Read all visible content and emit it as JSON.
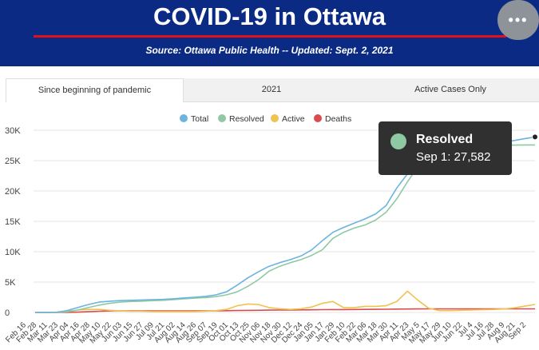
{
  "header": {
    "title": "COVID-19 in Ottawa",
    "subtitle": "Source:  Ottawa Public Health -- Updated:  Sept. 2, 2021",
    "more_icon": "ellipsis-icon",
    "more_label": "•••"
  },
  "tabs": [
    {
      "label": "Since beginning of pandemic",
      "active": true
    },
    {
      "label": "2021",
      "active": false
    },
    {
      "label": "Active Cases Only",
      "active": false
    }
  ],
  "tooltip": {
    "series": "Resolved",
    "text": "Sep 1: 27,582",
    "color": "#8fc9a3"
  },
  "chart_data": {
    "type": "line",
    "title": "",
    "xlabel": "",
    "ylabel": "",
    "ylim": [
      0,
      30000
    ],
    "yticks": [
      "0",
      "5K",
      "10K",
      "15K",
      "20K",
      "25K",
      "30K"
    ],
    "grid": true,
    "legend_position": "top-center",
    "x_ticks": [
      "Feb 16",
      "Feb 28",
      "Mar 11",
      "Mar 23",
      "Apr 04",
      "Apr 16",
      "Apr 28",
      "May 10",
      "May 22",
      "Jun 03",
      "Jun 15",
      "Jun 27",
      "Jul 09",
      "Jul 21",
      "Aug 02",
      "Aug 14",
      "Aug 26",
      "Sep 07",
      "Sep 19",
      "Oct 01",
      "Oct 13",
      "Oct 25",
      "Nov 06",
      "Nov 18",
      "Nov 30",
      "Dec 12",
      "Dec 24",
      "Jan 05",
      "Jan 17",
      "Jan 29",
      "Feb 10",
      "Feb 22",
      "Mar 06",
      "Mar 18",
      "Mar 30",
      "Apr 11",
      "Apr 23",
      "May 5",
      "May 17",
      "May 29",
      "Jun 10",
      "Jun 22",
      "Jul 4",
      "Jul 16",
      "Jul 28",
      "Aug 9",
      "Aug 21",
      "Sep 2"
    ],
    "series": [
      {
        "name": "Total",
        "color": "#6cb3e0",
        "values": [
          0,
          0,
          30,
          300,
          800,
          1300,
          1700,
          1850,
          1950,
          2000,
          2050,
          2100,
          2150,
          2250,
          2400,
          2500,
          2650,
          2900,
          3400,
          4500,
          5700,
          6700,
          7600,
          8200,
          8700,
          9300,
          10300,
          11800,
          13200,
          14000,
          14700,
          15400,
          16200,
          17600,
          20500,
          22800,
          25000,
          26200,
          27100,
          27500,
          27750,
          27850,
          27950,
          28000,
          28100,
          28300,
          28600,
          28900
        ]
      },
      {
        "name": "Resolved",
        "color": "#8fc9a3",
        "values": [
          0,
          0,
          0,
          100,
          400,
          800,
          1200,
          1500,
          1700,
          1800,
          1850,
          1950,
          2000,
          2100,
          2250,
          2350,
          2450,
          2600,
          2900,
          3400,
          4300,
          5400,
          6800,
          7600,
          8200,
          8700,
          9400,
          10300,
          12200,
          13200,
          13900,
          14400,
          15200,
          16500,
          18700,
          21500,
          24000,
          25800,
          26800,
          27200,
          27400,
          27450,
          27500,
          27510,
          27530,
          27550,
          27575,
          27582
        ]
      },
      {
        "name": "Active",
        "color": "#f0c24f",
        "values": [
          0,
          0,
          30,
          200,
          400,
          500,
          500,
          350,
          250,
          200,
          200,
          150,
          150,
          150,
          150,
          150,
          200,
          300,
          500,
          1100,
          1400,
          1300,
          800,
          600,
          500,
          600,
          900,
          1500,
          1800,
          800,
          800,
          1000,
          1000,
          1100,
          1800,
          3500,
          2000,
          700,
          300,
          300,
          350,
          400,
          450,
          490,
          570,
          750,
          1025,
          1318
        ]
      },
      {
        "name": "Deaths",
        "color": "#d94c4c",
        "values": [
          0,
          0,
          0,
          10,
          50,
          120,
          200,
          250,
          260,
          260,
          260,
          260,
          265,
          265,
          265,
          265,
          268,
          270,
          290,
          320,
          340,
          360,
          380,
          400,
          410,
          420,
          435,
          460,
          470,
          480,
          490,
          500,
          510,
          530,
          550,
          570,
          580,
          590,
          590,
          590,
          595,
          598,
          598,
          598,
          598,
          598,
          598,
          598
        ]
      }
    ]
  }
}
